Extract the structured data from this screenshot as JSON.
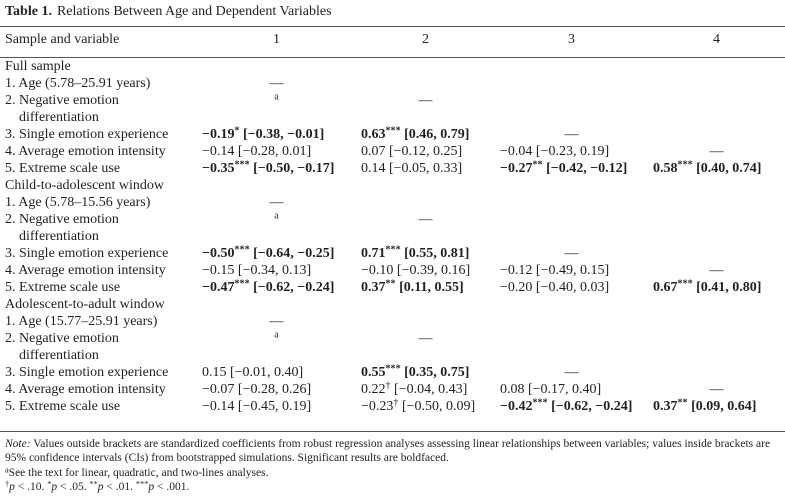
{
  "table": {
    "label": "Table 1.",
    "title": "Relations Between Age and Dependent Variables",
    "columns": [
      "Sample and variable",
      "1",
      "2",
      "3",
      "4"
    ],
    "sections": [
      {
        "name": "Full sample",
        "rows": [
          {
            "label": "1. Age (5.78–25.91 years)",
            "cells": [
              {
                "dash": "—"
              },
              null,
              null,
              null
            ]
          },
          {
            "label": "2. Negative emotion differentiation",
            "cells": [
              {
                "footnote": "a"
              },
              {
                "dash": "—"
              },
              null,
              null
            ]
          },
          {
            "label": "3. Single emotion experience",
            "cells": [
              {
                "coef": "−0.19",
                "sig": "*",
                "ci": "[−0.38, −0.01]",
                "bold": true
              },
              {
                "coef": "0.63",
                "sig": "***",
                "ci": "[0.46, 0.79]",
                "bold": true
              },
              {
                "dash": "—"
              },
              null
            ]
          },
          {
            "label": "4. Average emotion intensity",
            "cells": [
              {
                "coef": "−0.14",
                "ci": "[−0.28, 0.01]",
                "bold": false
              },
              {
                "coef": "0.07",
                "ci": "[−0.12, 0.25]",
                "bold": false
              },
              {
                "coef": "−0.04",
                "ci": "[−0.23, 0.19]",
                "bold": false
              },
              {
                "dash": "—"
              }
            ]
          },
          {
            "label": "5. Extreme scale use",
            "cells": [
              {
                "coef": "−0.35",
                "sig": "***",
                "ci": "[−0.50, −0.17]",
                "bold": true
              },
              {
                "coef": "0.14",
                "ci": "[−0.05, 0.33]",
                "bold": false
              },
              {
                "coef": "−0.27",
                "sig": "**",
                "ci": "[−0.42, −0.12]",
                "bold": true
              },
              {
                "coef": "0.58",
                "sig": "***",
                "ci": "[0.40, 0.74]",
                "bold": true
              }
            ]
          }
        ]
      },
      {
        "name": "Child-to-adolescent window",
        "rows": [
          {
            "label": "1. Age (5.78–15.56 years)",
            "cells": [
              {
                "dash": "—"
              },
              null,
              null,
              null
            ]
          },
          {
            "label": "2. Negative emotion differentiation",
            "cells": [
              {
                "footnote": "a"
              },
              {
                "dash": "—"
              },
              null,
              null
            ]
          },
          {
            "label": "3. Single emotion experience",
            "cells": [
              {
                "coef": "−0.50",
                "sig": "***",
                "ci": "[−0.64, −0.25]",
                "bold": true
              },
              {
                "coef": "0.71",
                "sig": "***",
                "ci": "[0.55, 0.81]",
                "bold": true
              },
              {
                "dash": "—"
              },
              null
            ]
          },
          {
            "label": "4. Average emotion intensity",
            "cells": [
              {
                "coef": "−0.15",
                "ci": "[−0.34, 0.13]",
                "bold": false
              },
              {
                "coef": "−0.10",
                "ci": "[−0.39, 0.16]",
                "bold": false
              },
              {
                "coef": "−0.12",
                "ci": "[−0.49, 0.15]",
                "bold": false
              },
              {
                "dash": "—"
              }
            ]
          },
          {
            "label": "5. Extreme scale use",
            "cells": [
              {
                "coef": "−0.47",
                "sig": "***",
                "ci": "[−0.62, −0.24]",
                "bold": true
              },
              {
                "coef": "0.37",
                "sig": "**",
                "ci": "[0.11, 0.55]",
                "bold": true
              },
              {
                "coef": "−0.20",
                "ci": "[−0.40, 0.03]",
                "bold": false
              },
              {
                "coef": "0.67",
                "sig": "***",
                "ci": "[0.41, 0.80]",
                "bold": true
              }
            ]
          }
        ]
      },
      {
        "name": "Adolescent-to-adult window",
        "rows": [
          {
            "label": "1. Age (15.77–25.91 years)",
            "cells": [
              {
                "dash": "—"
              },
              null,
              null,
              null
            ]
          },
          {
            "label": "2. Negative emotion differentiation",
            "cells": [
              {
                "footnote": "a"
              },
              {
                "dash": "—"
              },
              null,
              null
            ]
          },
          {
            "label": "3. Single emotion experience",
            "cells": [
              {
                "coef": "0.15",
                "ci": "[−0.01, 0.40]",
                "bold": false
              },
              {
                "coef": "0.55",
                "sig": "***",
                "ci": "[0.35, 0.75]",
                "bold": true
              },
              {
                "dash": "—"
              },
              null
            ]
          },
          {
            "label": "4. Average emotion intensity",
            "cells": [
              {
                "coef": "−0.07",
                "ci": "[−0.28, 0.26]",
                "bold": false
              },
              {
                "coef": "0.22",
                "sig": "†",
                "ci": "[−0.04, 0.43]",
                "bold": false
              },
              {
                "coef": "0.08",
                "ci": "[−0.17, 0.40]",
                "bold": false
              },
              {
                "dash": "—"
              }
            ]
          },
          {
            "label": "5. Extreme scale use",
            "cells": [
              {
                "coef": "−0.14",
                "ci": "[−0.45, 0.19]",
                "bold": false
              },
              {
                "coef": "−0.23",
                "sig": "†",
                "ci": "[−0.50, 0.09]",
                "bold": false
              },
              {
                "coef": "−0.42",
                "sig": "***",
                "ci": "[−0.62, −0.24]",
                "bold": true
              },
              {
                "coef": "0.37",
                "sig": "**",
                "ci": "[0.09, 0.64]",
                "bold": true
              }
            ]
          }
        ]
      }
    ]
  },
  "notes": {
    "label": "Note:",
    "text": "Values outside brackets are standardized coefficients from robust regression analyses assessing linear relationships between variables; values inside brackets are 95% confidence intervals (CIs) from bootstrapped simulations. Significant results are boldfaced.",
    "footnote": {
      "marker": "a",
      "text": "See the text for linear, quadratic, and two-lines analyses."
    },
    "significance": [
      {
        "symbol": "†",
        "variable": "p",
        "condition": "< .10."
      },
      {
        "symbol": "*",
        "variable": "p",
        "condition": "< .05."
      },
      {
        "symbol": "**",
        "variable": "p",
        "condition": "< .01."
      },
      {
        "symbol": "***",
        "variable": "p",
        "condition": "< .001."
      }
    ]
  }
}
